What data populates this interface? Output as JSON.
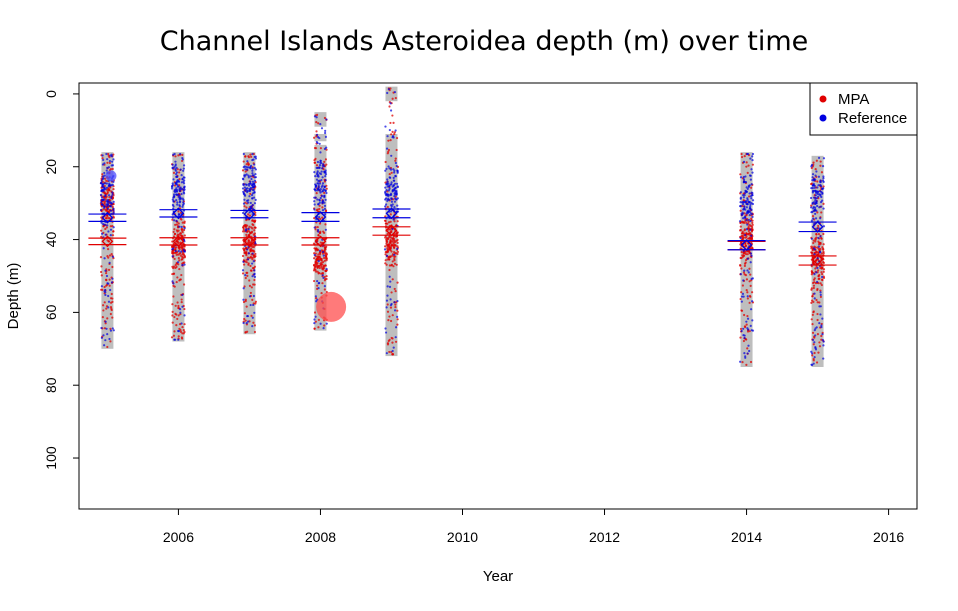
{
  "chart_data": {
    "type": "scatter",
    "title": "Channel Islands Asteroidea depth (m) over time",
    "xlabel": "Year",
    "ylabel": "Depth (m)",
    "xlim": [
      2004.6,
      2016.4
    ],
    "ylim": [
      114,
      -3
    ],
    "y_reversed": true,
    "x_ticks": [
      2006,
      2008,
      2010,
      2012,
      2014,
      2016
    ],
    "y_ticks": [
      0,
      20,
      40,
      60,
      80,
      100
    ],
    "grid": false,
    "legend_position": "top-right",
    "colors": {
      "MPA": "#e00000",
      "Reference": "#0000e0",
      "range_bar": "#bebebe"
    },
    "series": [
      {
        "name": "MPA",
        "color": "#e00000"
      },
      {
        "name": "Reference",
        "color": "#0000e0"
      }
    ],
    "depth_ranges": [
      {
        "year": 2005,
        "segments": [
          [
            16,
            70
          ]
        ]
      },
      {
        "year": 2006,
        "segments": [
          [
            16,
            68
          ]
        ]
      },
      {
        "year": 2007,
        "segments": [
          [
            16,
            66
          ]
        ]
      },
      {
        "year": 2008,
        "segments": [
          [
            5,
            9
          ],
          [
            11,
            13
          ],
          [
            14,
            65
          ]
        ]
      },
      {
        "year": 2009,
        "segments": [
          [
            -2,
            2
          ],
          [
            11,
            72
          ]
        ]
      },
      {
        "year": 2014,
        "segments": [
          [
            16,
            75
          ]
        ]
      },
      {
        "year": 2015,
        "segments": [
          [
            17,
            75
          ]
        ]
      }
    ],
    "points": [
      {
        "year": 2005,
        "mpa_mean": 40.5,
        "mpa_ci": [
          39.6,
          41.4
        ],
        "ref_mean": 34.0,
        "ref_ci": [
          33.0,
          35.0
        ],
        "mpa_peak": 30,
        "ref_peak": 26
      },
      {
        "year": 2006,
        "mpa_mean": 40.5,
        "mpa_ci": [
          39.5,
          41.5
        ],
        "ref_mean": 32.8,
        "ref_ci": [
          31.8,
          33.8
        ],
        "mpa_peak": 41,
        "ref_peak": 26
      },
      {
        "year": 2007,
        "mpa_mean": 40.5,
        "mpa_ci": [
          39.5,
          41.5
        ],
        "ref_mean": 33.0,
        "ref_ci": [
          32.0,
          34.0
        ],
        "mpa_peak": 41,
        "ref_peak": 25
      },
      {
        "year": 2008,
        "mpa_mean": 40.5,
        "mpa_ci": [
          39.5,
          41.5
        ],
        "ref_mean": 33.8,
        "ref_ci": [
          32.6,
          35.0
        ],
        "mpa_peak": 45,
        "ref_peak": 26
      },
      {
        "year": 2009,
        "mpa_mean": 37.5,
        "mpa_ci": [
          36.5,
          38.8
        ],
        "ref_mean": 32.8,
        "ref_ci": [
          31.6,
          34.0
        ],
        "mpa_peak": 40,
        "ref_peak": 27
      },
      {
        "year": 2014,
        "mpa_mean": 41.5,
        "mpa_ci": [
          40.5,
          42.8
        ],
        "ref_mean": 41.5,
        "ref_ci": [
          40.3,
          42.8
        ],
        "mpa_peak": 40,
        "ref_peak": 30
      },
      {
        "year": 2015,
        "mpa_mean": 45.5,
        "mpa_ci": [
          44.5,
          47.0
        ],
        "ref_mean": 36.5,
        "ref_ci": [
          35.2,
          37.8
        ],
        "mpa_peak": 45,
        "ref_peak": 28
      }
    ],
    "highlight_points": [
      {
        "series": "MPA",
        "year": 2008.15,
        "depth": 58.5
      },
      {
        "series": "Reference",
        "year": 2005.05,
        "depth": 22.5
      }
    ]
  }
}
